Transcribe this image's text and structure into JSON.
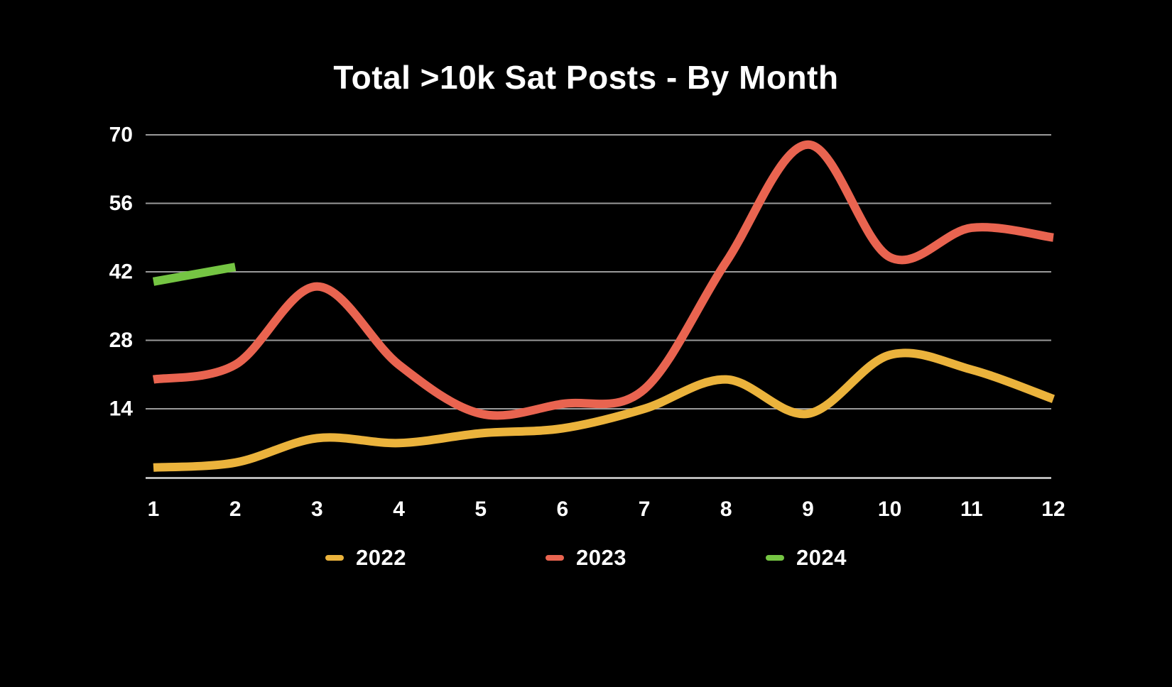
{
  "title": "Total >10k Sat Posts - By Month",
  "chart_data": {
    "type": "line",
    "x": [
      1,
      2,
      3,
      4,
      5,
      6,
      7,
      8,
      9,
      10,
      11,
      12
    ],
    "series": [
      {
        "name": "2022",
        "color": "#EBB33C",
        "values": [
          2,
          3,
          8,
          7,
          9,
          10,
          14,
          20,
          13,
          25,
          22,
          16
        ]
      },
      {
        "name": "2023",
        "color": "#E96450",
        "values": [
          20,
          23,
          39,
          23,
          13,
          15,
          18,
          44,
          68,
          45,
          51,
          49
        ]
      },
      {
        "name": "2024",
        "color": "#75C543",
        "values": [
          40,
          43
        ]
      }
    ],
    "ylim": [
      0,
      70
    ],
    "yticks": [
      14,
      28,
      42,
      56,
      70
    ],
    "grid": true,
    "grid_color": "#9a9a9a",
    "axis_line_color": "#d9d9d9",
    "background": "#000000",
    "text_color": "#ffffff",
    "legend_position": "bottom"
  }
}
